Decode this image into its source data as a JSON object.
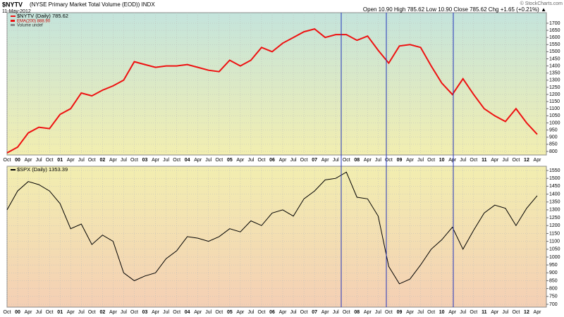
{
  "header": {
    "symbol": "$NYTV",
    "title": "(NYSE Primary Market Total Volume (EOD)) INDX",
    "date": "11-May-2012",
    "quote": "Open 10.90 High 785.62 Low 10.90 Close 785.62 Chg +1.65 (+0.21%) ▲",
    "credit": "© StockCharts.com"
  },
  "chart_data": [
    {
      "type": "line",
      "categories": [
        "Oct",
        "00",
        "Apr",
        "Jul",
        "Oct",
        "01",
        "Apr",
        "Jul",
        "Oct",
        "02",
        "Apr",
        "Jul",
        "Oct",
        "03",
        "Apr",
        "Jul",
        "Oct",
        "04",
        "Apr",
        "Jul",
        "Oct",
        "05",
        "Apr",
        "Jul",
        "Oct",
        "06",
        "Apr",
        "Jul",
        "Oct",
        "07",
        "Apr",
        "Jul",
        "Oct",
        "08",
        "Apr",
        "Jul",
        "Oct",
        "09",
        "Apr",
        "Jul",
        "Oct",
        "10",
        "Apr",
        "Jul",
        "Oct",
        "11",
        "Apr",
        "Jul",
        "Oct",
        "12",
        "Apr"
      ],
      "series": [
        {
          "name": "$NYTV (Daily) 785.62",
          "color": "#ee1111",
          "values": [
            790,
            830,
            930,
            970,
            960,
            1060,
            1100,
            1210,
            1190,
            1230,
            1260,
            1300,
            1430,
            1410,
            1390,
            1400,
            1400,
            1410,
            1390,
            1370,
            1360,
            1440,
            1400,
            1440,
            1530,
            1500,
            1560,
            1600,
            1640,
            1660,
            1600,
            1620,
            1620,
            1580,
            1610,
            1510,
            1420,
            1540,
            1550,
            1530,
            1400,
            1280,
            1200,
            1310,
            1200,
            1100,
            1050,
            1010,
            1100,
            1000,
            920
          ]
        }
      ],
      "legend_extra": [
        "EMA(200) 888.90",
        "Volume undef"
      ],
      "ylim": [
        775,
        1774
      ],
      "yticks": [
        800,
        850,
        900,
        950,
        1000,
        1050,
        1100,
        1150,
        1200,
        1250,
        1300,
        1350,
        1400,
        1450,
        1500,
        1550,
        1600,
        1650,
        1700
      ],
      "grid": true
    },
    {
      "type": "line",
      "categories": [
        "Oct",
        "00",
        "Apr",
        "Jul",
        "Oct",
        "01",
        "Apr",
        "Jul",
        "Oct",
        "02",
        "Apr",
        "Jul",
        "Oct",
        "03",
        "Apr",
        "Jul",
        "Oct",
        "04",
        "Apr",
        "Jul",
        "Oct",
        "05",
        "Apr",
        "Jul",
        "Oct",
        "06",
        "Apr",
        "Jul",
        "Oct",
        "07",
        "Apr",
        "Jul",
        "Oct",
        "08",
        "Apr",
        "Jul",
        "Oct",
        "09",
        "Apr",
        "Jul",
        "Oct",
        "10",
        "Apr",
        "Jul",
        "Oct",
        "11",
        "Apr",
        "Jul",
        "Oct",
        "12",
        "Apr"
      ],
      "series": [
        {
          "name": "$SPX (Daily) 1353.39",
          "color": "#000000",
          "values": [
            1300,
            1420,
            1480,
            1460,
            1420,
            1340,
            1180,
            1210,
            1080,
            1140,
            1100,
            900,
            850,
            880,
            900,
            990,
            1040,
            1130,
            1120,
            1100,
            1130,
            1180,
            1160,
            1230,
            1200,
            1280,
            1300,
            1260,
            1370,
            1420,
            1490,
            1500,
            1540,
            1380,
            1370,
            1260,
            940,
            830,
            860,
            950,
            1050,
            1110,
            1190,
            1050,
            1170,
            1280,
            1330,
            1310,
            1200,
            1310,
            1390
          ]
        }
      ],
      "ylim": [
        682,
        1577
      ],
      "yticks": [
        700,
        750,
        800,
        850,
        900,
        950,
        1000,
        1050,
        1100,
        1150,
        1200,
        1250,
        1300,
        1350,
        1400,
        1450,
        1500,
        1550
      ],
      "grid": true
    }
  ]
}
